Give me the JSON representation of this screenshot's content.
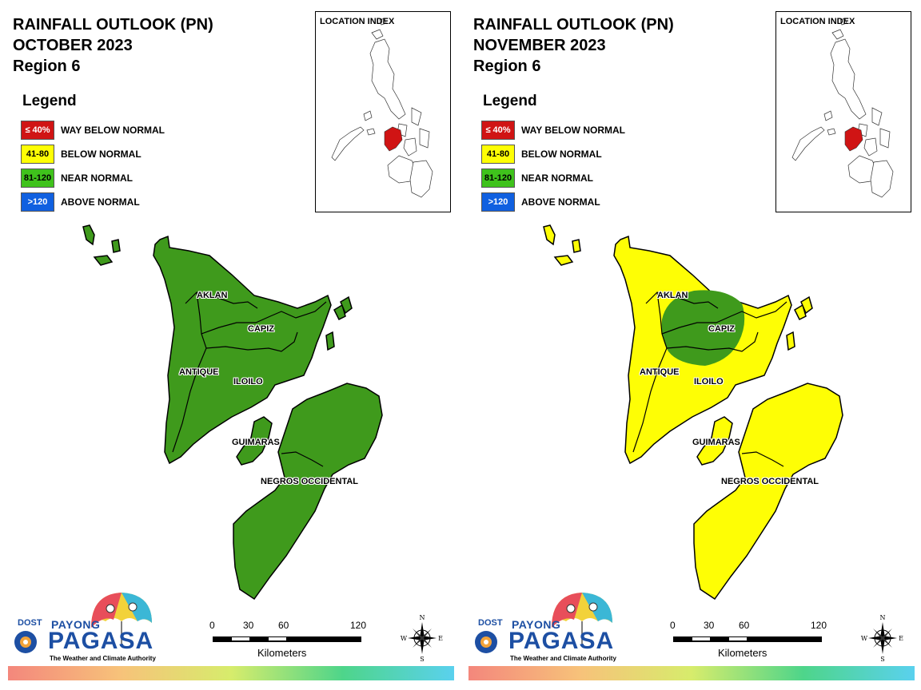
{
  "panels": [
    {
      "title_line1": "RAINFALL OUTLOOK (PN)",
      "title_line2": "OCTOBER 2023",
      "title_line3": "Region 6",
      "fill_color": "#3f9a1c",
      "classification": "NEAR NORMAL"
    },
    {
      "title_line1": "RAINFALL OUTLOOK (PN)",
      "title_line2": "NOVEMBER 2023",
      "title_line3": "Region 6",
      "fill_color": "#fefe05",
      "classification": "BELOW NORMAL",
      "capiz_zone_color": "#3f9a1c"
    }
  ],
  "legend": {
    "title": "Legend",
    "items": [
      {
        "range": "≤ 40%",
        "label": "WAY BELOW NORMAL",
        "color": "#d01414",
        "text_color": "#ffffff"
      },
      {
        "range": "41-80",
        "label": "BELOW NORMAL",
        "color": "#fefe05",
        "text_color": "#000000"
      },
      {
        "range": "81-120",
        "label": "NEAR NORMAL",
        "color": "#3fc21c",
        "text_color": "#000000"
      },
      {
        "range": ">120",
        "label": "ABOVE NORMAL",
        "color": "#1060e0",
        "text_color": "#ffffff"
      }
    ]
  },
  "location_index": {
    "title": "LOCATION INDEX",
    "highlight_color": "#d01414"
  },
  "provinces": {
    "aklan": "AKLAN",
    "capiz": "CAPIZ",
    "antique": "ANTIQUE",
    "iloilo": "ILOILO",
    "guimaras": "GUIMARAS",
    "negros": "NEGROS OCCIDENTAL"
  },
  "scale_bar": {
    "ticks": [
      "0",
      "30",
      "60",
      "120"
    ],
    "unit": "Kilometers"
  },
  "compass": {
    "n": "N",
    "s": "S",
    "e": "E",
    "w": "W"
  },
  "logo": {
    "dost": "DOST",
    "payong": "PAYONG",
    "pagasa": "PAGASA",
    "tagline": "The Weather and Climate Authority"
  }
}
